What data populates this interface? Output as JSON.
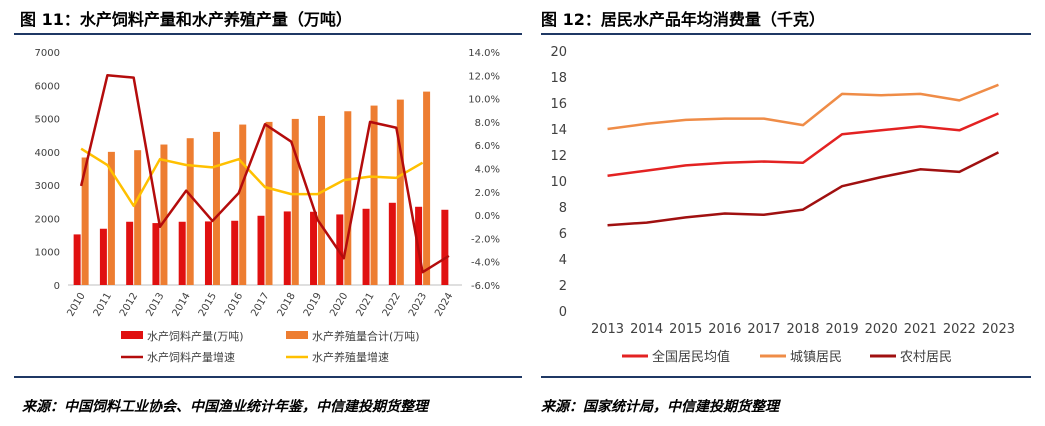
{
  "left": {
    "title": "图 11：水产饲料产量和水产养殖产量（万吨）",
    "source": "来源：中国饲料工业协会、中国渔业统计年鉴，中信建投期货整理"
  },
  "right": {
    "title": "图 12：居民水产品年均消费量（千克）",
    "source": "来源：国家统计局，中信建投期货整理"
  },
  "colors": {
    "feed": "#e01010",
    "aqua": "#ed7d31",
    "feed_growth": "#b40c0c",
    "aqua_growth": "#ffc000",
    "national": "#e32222",
    "urban": "#ef8c47",
    "rural": "#a01010",
    "rule": "#1f3864"
  },
  "chart_data": [
    {
      "type": "bar",
      "categories": [
        "2010",
        "2011",
        "2012",
        "2013",
        "2014",
        "2015",
        "2016",
        "2017",
        "2018",
        "2019",
        "2020",
        "2021",
        "2022",
        "2023",
        "2024"
      ],
      "ylim": [
        0,
        7000
      ],
      "yticks": [
        "0",
        "1000",
        "2000",
        "3000",
        "4000",
        "5000",
        "6000",
        "7000"
      ],
      "y2lim": [
        -6,
        14
      ],
      "y2ticks": [
        "-6.0%",
        "-4.0%",
        "-2.0%",
        "0.0%",
        "2.0%",
        "4.0%",
        "6.0%",
        "8.0%",
        "10.0%",
        "12.0%",
        "14.0%"
      ],
      "series": [
        {
          "name": "水产饲料产量(万吨)",
          "kind": "bar",
          "axis": "left",
          "values": [
            1520,
            1690,
            1900,
            1860,
            1900,
            1910,
            1930,
            2080,
            2210,
            2200,
            2120,
            2290,
            2470,
            2350,
            2260
          ]
        },
        {
          "name": "水产养殖量合计(万吨)",
          "kind": "bar",
          "axis": "left",
          "values": [
            3830,
            4000,
            4050,
            4220,
            4410,
            4600,
            4820,
            4900,
            4990,
            5080,
            5220,
            5390,
            5570,
            5810,
            null
          ]
        },
        {
          "name": "水产饲料产量增速",
          "kind": "line",
          "axis": "right",
          "values": [
            2.5,
            12.0,
            11.8,
            -1.0,
            2.1,
            -0.5,
            1.9,
            7.8,
            6.3,
            -0.4,
            -3.7,
            8.0,
            7.5,
            -4.9,
            -3.5
          ]
        },
        {
          "name": "水产养殖量增速",
          "kind": "line",
          "axis": "right",
          "values": [
            5.7,
            4.3,
            0.8,
            4.8,
            4.3,
            4.1,
            4.8,
            2.4,
            1.8,
            1.8,
            3.0,
            3.3,
            3.2,
            4.5,
            null
          ]
        }
      ]
    },
    {
      "type": "line",
      "categories": [
        "2013",
        "2014",
        "2015",
        "2016",
        "2017",
        "2018",
        "2019",
        "2020",
        "2021",
        "2022",
        "2023"
      ],
      "ylim": [
        0,
        20
      ],
      "yticks": [
        "0",
        "2",
        "4",
        "6",
        "8",
        "10",
        "12",
        "14",
        "16",
        "18",
        "20"
      ],
      "series": [
        {
          "name": "全国居民均值",
          "values": [
            10.4,
            10.8,
            11.2,
            11.4,
            11.5,
            11.4,
            13.6,
            13.9,
            14.2,
            13.9,
            15.2
          ]
        },
        {
          "name": "城镇居民",
          "values": [
            14.0,
            14.4,
            14.7,
            14.8,
            14.8,
            14.3,
            16.7,
            16.6,
            16.7,
            16.2,
            17.4
          ]
        },
        {
          "name": "农村居民",
          "values": [
            6.6,
            6.8,
            7.2,
            7.5,
            7.4,
            7.8,
            9.6,
            10.3,
            10.9,
            10.7,
            12.2
          ]
        }
      ]
    }
  ]
}
